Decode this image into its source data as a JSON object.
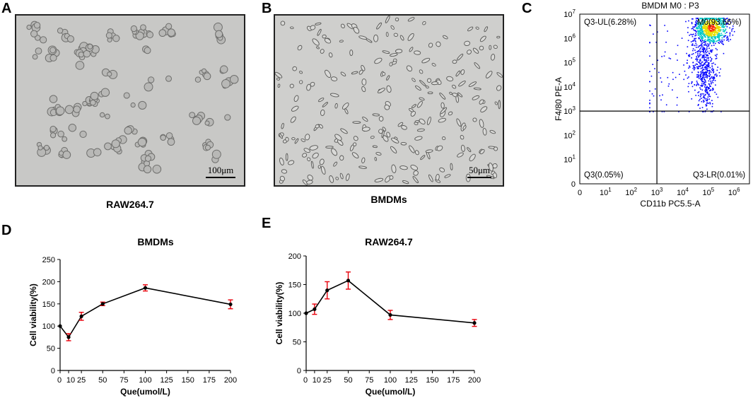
{
  "panels": {
    "a": {
      "letter": "A",
      "caption": "RAW264.7",
      "scalebar": "100μm"
    },
    "b": {
      "letter": "B",
      "caption": "BMDMs",
      "scalebar": "50μm"
    },
    "c": {
      "letter": "C"
    },
    "d": {
      "letter": "D"
    },
    "e": {
      "letter": "E"
    }
  },
  "chart_data": [
    {
      "id": "flow",
      "type": "scatter",
      "title": "BMDM M0 : P3",
      "xlabel": "CD11b PC5.5-A",
      "ylabel": "F4/80 PE-A",
      "scale": "log",
      "x_ticks": [
        "0",
        "10^1",
        "10^2",
        "10^3",
        "10^4",
        "10^5",
        "10^6"
      ],
      "y_ticks": [
        "0",
        "10^1",
        "10^2",
        "10^3",
        "10^4",
        "10^5",
        "10^6",
        "10^7"
      ],
      "gate_x": 1000,
      "gate_y": 1000,
      "quadrants": [
        {
          "label": "Q3-UL(6.28%)",
          "position": "upper-left"
        },
        {
          "label": "M0(93.66%)",
          "position": "upper-right"
        },
        {
          "label": "Q3(0.05%)",
          "position": "lower-left"
        },
        {
          "label": "Q3-LR(0.01%)",
          "position": "lower-right"
        }
      ],
      "colors": {
        "low": "#0000ff",
        "mid": "#00c8c8",
        "high": "#ff2a00"
      }
    },
    {
      "id": "bmdm",
      "type": "line",
      "title": "BMDMs",
      "xlabel": "Que(umol/L)",
      "ylabel": "Cell viability(%)",
      "x": [
        0,
        10,
        25,
        50,
        100,
        200
      ],
      "y": [
        100,
        75,
        122,
        150,
        186,
        149
      ],
      "error": [
        0,
        8,
        9,
        4,
        7,
        10
      ],
      "xlim": [
        0,
        200
      ],
      "ylim": [
        0,
        250
      ],
      "x_ticks": [
        "0",
        "10",
        "25",
        "50",
        "75",
        "100",
        "125",
        "150",
        "175",
        "200"
      ],
      "y_ticks": [
        "0",
        "50",
        "100",
        "150",
        "200",
        "250"
      ],
      "line_color": "#000000",
      "error_color": "#e8000b"
    },
    {
      "id": "raw",
      "type": "line",
      "title": "RAW264.7",
      "xlabel": "Que(umol/L)",
      "ylabel": "Cell viability(%)",
      "x": [
        0,
        10,
        25,
        50,
        100,
        200
      ],
      "y": [
        100,
        107,
        140,
        157,
        97,
        83
      ],
      "error": [
        0,
        9,
        15,
        15,
        8,
        6
      ],
      "xlim": [
        0,
        200
      ],
      "ylim": [
        0,
        200
      ],
      "x_ticks": [
        "0",
        "10",
        "25",
        "50",
        "75",
        "100",
        "125",
        "150",
        "175",
        "200"
      ],
      "y_ticks": [
        "0",
        "50",
        "100",
        "150",
        "200"
      ],
      "line_color": "#000000",
      "error_color": "#e8000b"
    }
  ]
}
